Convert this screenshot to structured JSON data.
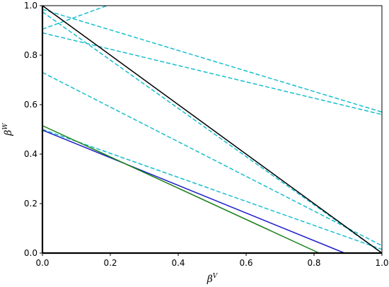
{
  "chart_data": {
    "type": "line",
    "title": "",
    "xlabel": "β",
    "xlabel_superscript": "V",
    "ylabel": "β",
    "ylabel_superscript": "W",
    "xlim": [
      0,
      1
    ],
    "ylim": [
      0,
      1
    ],
    "xticks": [
      0.0,
      0.2,
      0.4,
      0.6,
      0.8,
      1.0
    ],
    "xtick_labels": [
      "0.0",
      "0.2",
      "0.4",
      "0.6",
      "0.8",
      "1.0"
    ],
    "yticks": [
      0.0,
      0.2,
      0.4,
      0.6,
      0.8,
      1.0
    ],
    "ytick_labels": [
      "0.0",
      "0.2",
      "0.4",
      "0.6",
      "0.8",
      "1.0"
    ],
    "grid": false,
    "series": [
      {
        "color": "#17becf",
        "style": "dashed",
        "x": [
          0.0,
          0.19
        ],
        "y": [
          0.905,
          1.0
        ]
      },
      {
        "color": "#17becf",
        "style": "dashed",
        "x": [
          0.0,
          1.0
        ],
        "y": [
          0.985,
          0.57
        ]
      },
      {
        "color": "#17becf",
        "style": "dashed",
        "x": [
          0.0,
          1.0
        ],
        "y": [
          0.975,
          0.0
        ]
      },
      {
        "color": "#17becf",
        "style": "dashed",
        "x": [
          0.0,
          1.0
        ],
        "y": [
          0.89,
          0.56
        ]
      },
      {
        "color": "#17becf",
        "style": "dashed",
        "x": [
          0.0,
          1.0
        ],
        "y": [
          0.73,
          0.03
        ]
      },
      {
        "color": "#17becf",
        "style": "dashed",
        "x": [
          0.0,
          1.0
        ],
        "y": [
          0.5,
          0.015
        ]
      },
      {
        "color": "#1f1fcc",
        "style": "solid",
        "x": [
          0.0,
          0.89
        ],
        "y": [
          0.497,
          0.0
        ]
      },
      {
        "color": "#1a801a",
        "style": "solid",
        "x": [
          0.0,
          0.815
        ],
        "y": [
          0.515,
          0.0
        ]
      },
      {
        "color": "#000000",
        "style": "solid",
        "x": [
          0.0,
          1.0
        ],
        "y": [
          1.0,
          0.0
        ]
      },
      {
        "color": "#000000",
        "style": "solid",
        "x": [
          0.0,
          0.0
        ],
        "y": [
          0.0,
          1.0
        ]
      },
      {
        "color": "#000000",
        "style": "solid",
        "x": [
          0.0,
          1.0
        ],
        "y": [
          0.0,
          0.0
        ]
      }
    ]
  }
}
